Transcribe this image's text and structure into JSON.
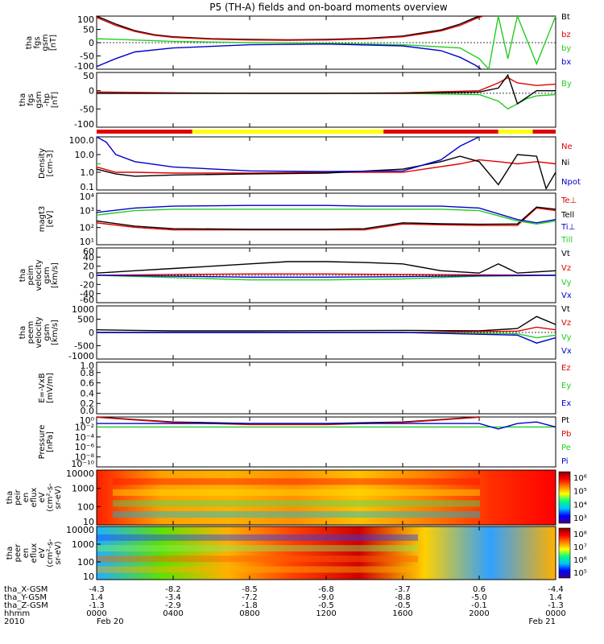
{
  "title": "P5 (TH-A) fields and on-board moments overview",
  "colors": {
    "black": "#000000",
    "red": "#e00000",
    "green": "#22cc22",
    "blue": "#0000cc",
    "yellow": "#ffff00",
    "frame": "#000000"
  },
  "chart_data": [
    {
      "type": "line",
      "panel": "fgs_gse",
      "ylabel": [
        "tha",
        "fgs",
        "gsm",
        "[nT]"
      ],
      "ylim": [
        -100,
        100
      ],
      "yticks": [
        "100",
        "50",
        "0",
        "-50",
        "-100"
      ],
      "xlim": [
        0,
        24
      ],
      "series": [
        {
          "name": "Bt",
          "color": "#000000",
          "x": [
            0,
            1,
            2,
            3,
            4,
            6,
            8,
            10,
            12,
            14,
            16,
            18,
            19,
            19.8,
            20.2
          ],
          "y": [
            100,
            70,
            45,
            30,
            22,
            15,
            12,
            11,
            12,
            16,
            25,
            48,
            70,
            95,
            100
          ]
        },
        {
          "name": "bz",
          "color": "#e00000",
          "x": [
            0,
            1,
            2,
            3,
            4,
            6,
            8,
            10,
            12,
            14,
            16,
            18,
            19,
            19.8,
            20.2
          ],
          "y": [
            95,
            65,
            42,
            28,
            20,
            13,
            10,
            9,
            10,
            14,
            22,
            44,
            65,
            90,
            100
          ]
        },
        {
          "name": "by",
          "color": "#22cc22",
          "x": [
            0,
            2,
            4,
            8,
            12,
            16,
            19,
            20,
            20.5,
            21,
            21.5,
            22,
            23,
            24
          ],
          "y": [
            15,
            10,
            5,
            0,
            -2,
            -8,
            -20,
            -60,
            -100,
            100,
            -60,
            100,
            -80,
            100
          ]
        },
        {
          "name": "bx",
          "color": "#0000cc",
          "x": [
            0,
            1,
            2,
            4,
            8,
            12,
            16,
            18,
            19,
            19.8,
            20.1
          ],
          "y": [
            -90,
            -60,
            -35,
            -20,
            -8,
            -5,
            -12,
            -30,
            -55,
            -85,
            -100
          ]
        }
      ]
    },
    {
      "type": "line",
      "panel": "fgs_hp",
      "ylabel": [
        "tha",
        "fgs",
        "gsm",
        "-hp",
        "[nT]"
      ],
      "ylim": [
        -130,
        80
      ],
      "yticks": [
        "50",
        "0",
        "-50",
        "-100"
      ],
      "xlim": [
        0,
        24
      ],
      "series": [
        {
          "name": "By",
          "color": "#22cc22",
          "x": [
            0,
            4,
            8,
            12,
            16,
            20,
            21,
            21.5,
            22,
            22.5,
            23,
            24
          ],
          "y": [
            0,
            0,
            0,
            0,
            0,
            -5,
            -30,
            -60,
            -40,
            -20,
            -10,
            -5
          ]
        },
        {
          "name": "",
          "color": "#e00000",
          "x": [
            0,
            4,
            8,
            12,
            16,
            20,
            21,
            21.5,
            22,
            23,
            24
          ],
          "y": [
            5,
            2,
            0,
            0,
            2,
            10,
            40,
            60,
            40,
            30,
            35
          ]
        },
        {
          "name": "",
          "color": "#000000",
          "x": [
            0,
            4,
            8,
            12,
            16,
            20,
            21,
            21.5,
            22,
            23,
            24
          ],
          "y": [
            0,
            0,
            0,
            0,
            0,
            5,
            20,
            70,
            -40,
            10,
            10
          ]
        }
      ]
    },
    {
      "type": "line",
      "panel": "density",
      "ylabel": [
        "Density",
        "[cm-3]"
      ],
      "ylim": [
        0.1,
        100
      ],
      "log": true,
      "yticks": [
        "100.0",
        "10.0",
        "1.0",
        "0.1"
      ],
      "xlim": [
        0,
        24
      ],
      "series": [
        {
          "name": "Ne",
          "color": "#e00000",
          "x": [
            0,
            1,
            2,
            4,
            8,
            12,
            16,
            19,
            20,
            21,
            22,
            23,
            24
          ],
          "y": [
            2,
            1,
            1,
            0.9,
            0.9,
            1,
            1,
            3,
            5,
            4,
            3,
            4,
            3
          ]
        },
        {
          "name": "Ni",
          "color": "#000000",
          "x": [
            0,
            1,
            2,
            4,
            8,
            12,
            16,
            18,
            19,
            20,
            21,
            22,
            23,
            23.5,
            24
          ],
          "y": [
            1.5,
            0.8,
            0.6,
            0.7,
            0.8,
            0.9,
            1.5,
            4,
            8,
            4,
            0.2,
            10,
            8,
            0.12,
            1
          ]
        },
        {
          "name": "Npot",
          "color": "#0000cc",
          "x": [
            0,
            0.5,
            1,
            2,
            4,
            8,
            12,
            16,
            18,
            19,
            20
          ],
          "y": [
            100,
            50,
            10,
            4,
            2,
            1.2,
            1.1,
            1.2,
            5,
            30,
            100
          ]
        },
        {
          "name": "",
          "color": "#22cc22",
          "x": [
            0,
            0.2
          ],
          "y": [
            3,
            3
          ]
        }
      ]
    },
    {
      "type": "line",
      "panel": "temperature",
      "ylabel": [
        "magt3",
        "[eV]"
      ],
      "ylim": [
        10,
        30000
      ],
      "log": true,
      "yticks": [
        "10⁴",
        "10³",
        "10²",
        "10¹"
      ],
      "xlim": [
        0,
        24
      ],
      "series": [
        {
          "name": "Te⊥",
          "color": "#e00000",
          "x": [
            0,
            2,
            4,
            8,
            12,
            14,
            16,
            18,
            20,
            22,
            23,
            24
          ],
          "y": [
            300,
            150,
            100,
            100,
            100,
            100,
            250,
            220,
            200,
            200,
            3000,
            2000
          ]
        },
        {
          "name": "Tell",
          "color": "#000000",
          "x": [
            0,
            2,
            4,
            8,
            12,
            14,
            16,
            18,
            20,
            22,
            23,
            24
          ],
          "y": [
            400,
            180,
            120,
            110,
            110,
            120,
            300,
            260,
            240,
            250,
            3500,
            2500
          ]
        },
        {
          "name": "Ti⊥",
          "color": "#0000cc",
          "x": [
            0,
            2,
            4,
            8,
            12,
            14,
            16,
            18,
            20,
            22,
            23,
            24
          ],
          "y": [
            1500,
            3000,
            4000,
            4500,
            4500,
            4000,
            4000,
            4000,
            3000,
            500,
            300,
            500
          ]
        },
        {
          "name": "Till",
          "color": "#22cc22",
          "x": [
            0,
            2,
            4,
            8,
            12,
            14,
            16,
            18,
            20,
            22,
            23,
            24
          ],
          "y": [
            1000,
            2000,
            2500,
            2500,
            2500,
            2500,
            2500,
            2500,
            2000,
            400,
            250,
            400
          ]
        }
      ]
    },
    {
      "type": "line",
      "panel": "peim_velocity",
      "ylabel": [
        "tha",
        "peim",
        "velocity",
        "gsm",
        "[km/s]"
      ],
      "ylim": [
        -60,
        60
      ],
      "yticks": [
        "60",
        "40",
        "20",
        "0",
        "-20",
        "-40",
        "-60"
      ],
      "xlim": [
        0,
        24
      ],
      "series": [
        {
          "name": "Vt",
          "color": "#000000",
          "x": [
            0,
            2,
            4,
            6,
            8,
            10,
            12,
            14,
            16,
            18,
            20,
            21,
            22,
            24
          ],
          "y": [
            5,
            10,
            15,
            20,
            25,
            30,
            30,
            28,
            25,
            10,
            5,
            25,
            5,
            10
          ]
        },
        {
          "name": "Vz",
          "color": "#e00000",
          "x": [
            0,
            4,
            8,
            12,
            16,
            20,
            24
          ],
          "y": [
            0,
            2,
            3,
            3,
            2,
            1,
            0
          ]
        },
        {
          "name": "Vy",
          "color": "#22cc22",
          "x": [
            0,
            4,
            8,
            12,
            16,
            20,
            24
          ],
          "y": [
            0,
            -5,
            -10,
            -10,
            -8,
            -2,
            0
          ]
        },
        {
          "name": "Vx",
          "color": "#0000cc",
          "x": [
            0,
            4,
            8,
            12,
            16,
            20,
            24
          ],
          "y": [
            0,
            -2,
            -4,
            -4,
            -3,
            -1,
            0
          ]
        }
      ]
    },
    {
      "type": "line",
      "panel": "peem_velocity",
      "ylabel": [
        "tha",
        "peem",
        "velocity",
        "gsm",
        "[km/s]"
      ],
      "ylim": [
        -1000,
        1000
      ],
      "yticks": [
        "1000",
        "500",
        "0",
        "-500",
        "-1000"
      ],
      "xlim": [
        0,
        24
      ],
      "series": [
        {
          "name": "Vt",
          "color": "#000000",
          "x": [
            0,
            2,
            4,
            8,
            12,
            16,
            20,
            22,
            23,
            24
          ],
          "y": [
            100,
            80,
            60,
            60,
            70,
            80,
            60,
            150,
            600,
            300
          ]
        },
        {
          "name": "Vz",
          "color": "#e00000",
          "x": [
            0,
            8,
            16,
            22,
            23,
            24
          ],
          "y": [
            0,
            0,
            0,
            50,
            200,
            100
          ]
        },
        {
          "name": "Vy",
          "color": "#22cc22",
          "x": [
            0,
            8,
            16,
            22,
            23,
            24
          ],
          "y": [
            0,
            0,
            0,
            -50,
            -200,
            -100
          ]
        },
        {
          "name": "Vx",
          "color": "#0000cc",
          "x": [
            0,
            8,
            16,
            22,
            23,
            24
          ],
          "y": [
            0,
            0,
            0,
            -100,
            -400,
            -200
          ]
        }
      ]
    },
    {
      "type": "line",
      "panel": "efield",
      "ylabel": [
        "E=-VxB",
        "[mV/m]"
      ],
      "ylim": [
        0,
        1
      ],
      "yticks": [
        "1.0",
        "0.8",
        "0.6",
        "0.4",
        "0.2",
        "0.0"
      ],
      "xlim": [
        0,
        24
      ],
      "series": [
        {
          "name": "Ez",
          "color": "#e00000",
          "x": [],
          "y": []
        },
        {
          "name": "Ey",
          "color": "#22cc22",
          "x": [],
          "y": []
        },
        {
          "name": "Ex",
          "color": "#0000cc",
          "x": [],
          "y": []
        }
      ]
    },
    {
      "type": "line",
      "panel": "pressure",
      "ylabel": [
        "Pressure",
        "[nPa]"
      ],
      "ylim": [
        1e-10,
        1
      ],
      "log": true,
      "yticks": [
        "10⁰",
        "10⁻²",
        "10⁻⁴",
        "10⁻⁶",
        "10⁻⁸",
        "10⁻¹⁰"
      ],
      "xlim": [
        0,
        24
      ],
      "series": [
        {
          "name": "Pt",
          "color": "#000000",
          "x": [
            0,
            2,
            4,
            8,
            12,
            16,
            18,
            20
          ],
          "y": [
            1,
            0.3,
            0.1,
            0.05,
            0.05,
            0.1,
            0.3,
            1
          ]
        },
        {
          "name": "Pb",
          "color": "#e00000",
          "x": [
            0,
            2,
            4,
            8,
            12,
            16,
            18,
            20
          ],
          "y": [
            0.9,
            0.25,
            0.08,
            0.03,
            0.03,
            0.08,
            0.25,
            0.9
          ]
        },
        {
          "name": "Pe",
          "color": "#22cc22",
          "x": [
            0,
            4,
            8,
            12,
            16,
            20,
            24
          ],
          "y": [
            0.01,
            0.01,
            0.01,
            0.01,
            0.01,
            0.01,
            0.01
          ]
        },
        {
          "name": "Pi",
          "color": "#0000cc",
          "x": [
            0,
            4,
            8,
            12,
            16,
            20,
            21,
            22,
            23,
            24
          ],
          "y": [
            0.05,
            0.05,
            0.05,
            0.05,
            0.05,
            0.05,
            0.004,
            0.05,
            0.1,
            0.01
          ]
        }
      ]
    },
    {
      "type": "heatmap",
      "panel": "peir_eflux",
      "ylabel": [
        "tha",
        "peir",
        "en",
        "eflux",
        "eV",
        "(cm²-s-",
        "sr-eV)"
      ],
      "yticks": [
        "10000",
        "1000",
        "100",
        "10"
      ],
      "colorbar_ticks": [
        "10⁶",
        "10⁵",
        "10⁴",
        "10³"
      ]
    },
    {
      "type": "heatmap",
      "panel": "peer_eflux",
      "ylabel": [
        "tha",
        "peer",
        "en",
        "eflux",
        "eV",
        "(cm²-s-",
        "sr-eV)"
      ],
      "yticks": [
        "10000",
        "1000",
        "100",
        "10"
      ],
      "colorbar_ticks": [
        "10⁸",
        "10⁷",
        "10⁶",
        "10⁵"
      ]
    }
  ],
  "xaxis": {
    "rows": [
      {
        "label": "tha_X-GSM",
        "values": [
          "-4.3",
          "-8.2",
          "-8.5",
          "-6.8",
          "-3.7",
          "0.6",
          "-4.4"
        ]
      },
      {
        "label": "tha_Y-GSM",
        "values": [
          "1.4",
          "-3.4",
          "-7.2",
          "-9.0",
          "-8.8",
          "-5.0",
          "1.4"
        ]
      },
      {
        "label": "tha_Z-GSM",
        "values": [
          "-1.3",
          "-2.9",
          "-1.8",
          "-0.5",
          "-0.5",
          "-0.1",
          "-1.3"
        ]
      },
      {
        "label": "hhmm",
        "values": [
          "0000",
          "0400",
          "0800",
          "1200",
          "1600",
          "2000",
          "0000"
        ]
      },
      {
        "label": "2010",
        "values": [
          "Feb 20",
          "",
          "",
          "",
          "",
          "",
          "Feb 21"
        ]
      }
    ],
    "hours": [
      0,
      4,
      8,
      12,
      16,
      20,
      24
    ]
  }
}
